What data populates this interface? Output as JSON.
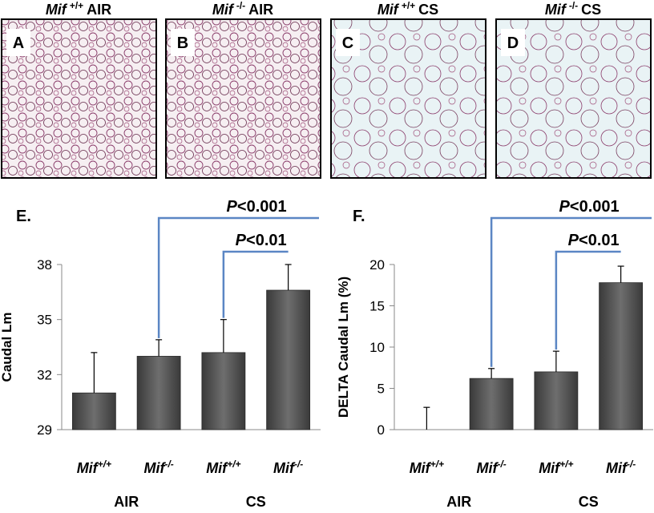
{
  "panels": [
    {
      "letter": "A",
      "gene": "Mif",
      "genotype": "+/+",
      "condition": "AIR"
    },
    {
      "letter": "B",
      "gene": "Mif",
      "genotype": "-/-",
      "condition": "AIR"
    },
    {
      "letter": "C",
      "gene": "Mif",
      "genotype": "+/+",
      "condition": "CS"
    },
    {
      "letter": "D",
      "gene": "Mif",
      "genotype": "-/-",
      "condition": "CS"
    }
  ],
  "chart_data": [
    {
      "type": "bar",
      "panel_label": "E.",
      "y_label": "Caudal Lm",
      "categories": [
        {
          "gene": "Mif",
          "genotype": "+/+"
        },
        {
          "gene": "Mif",
          "genotype": "-/-"
        },
        {
          "gene": "Mif",
          "genotype": "+/+"
        },
        {
          "gene": "Mif",
          "genotype": "-/-"
        }
      ],
      "groups": [
        "AIR",
        "CS"
      ],
      "values": [
        31.0,
        33.0,
        33.2,
        36.6
      ],
      "errors": [
        2.2,
        0.9,
        1.8,
        1.4
      ],
      "ylim": [
        29,
        38
      ],
      "yticks": [
        29,
        32,
        35,
        38
      ],
      "significance": [
        {
          "p": "P",
          "text": "<0.001",
          "from": 1,
          "to": 3
        },
        {
          "p": "P",
          "text": "<0.01",
          "from": 2,
          "to": 3
        }
      ]
    },
    {
      "type": "bar",
      "panel_label": "F.",
      "y_label": "DELTA Caudal Lm (%)",
      "categories": [
        {
          "gene": "Mif",
          "genotype": "+/+"
        },
        {
          "gene": "Mif",
          "genotype": "-/-"
        },
        {
          "gene": "Mif",
          "genotype": "+/+"
        },
        {
          "gene": "Mif",
          "genotype": "-/-"
        }
      ],
      "groups": [
        "AIR",
        "CS"
      ],
      "values": [
        0,
        6.2,
        7.0,
        17.8
      ],
      "errors": [
        2.7,
        1.2,
        2.5,
        2.0
      ],
      "ylim": [
        0,
        20
      ],
      "yticks": [
        0,
        5,
        10,
        15,
        20
      ],
      "significance": [
        {
          "p": "P",
          "text": "<0.001",
          "from": 1,
          "to": 3
        },
        {
          "p": "P",
          "text": "<0.01",
          "from": 2,
          "to": 3
        }
      ]
    }
  ]
}
